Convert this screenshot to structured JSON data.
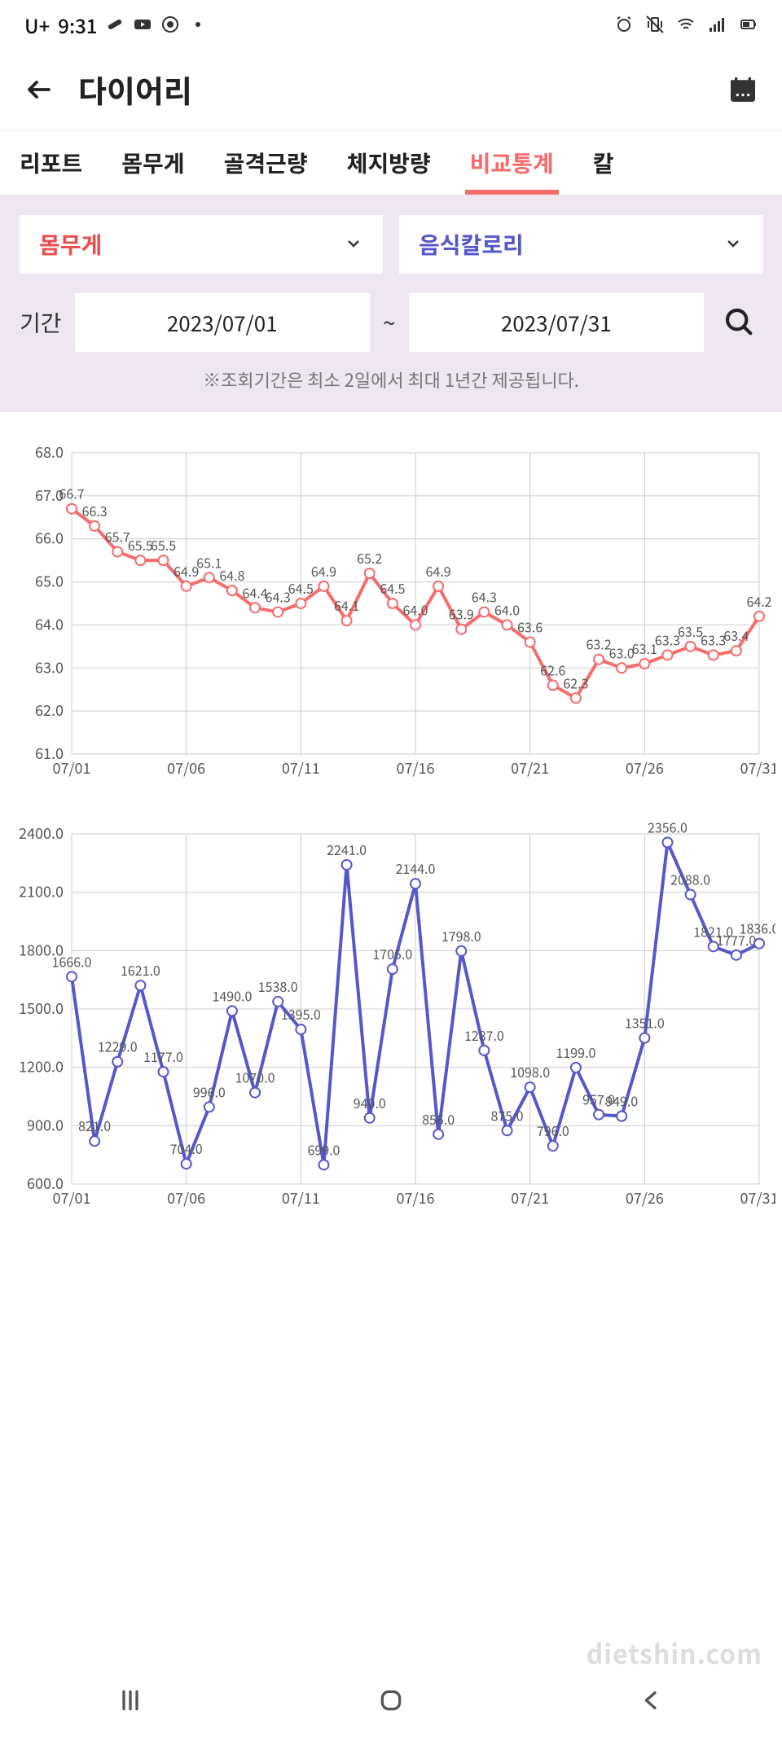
{
  "status": {
    "carrier": "U+",
    "time": "9:31",
    "icons_left": [
      "pill-icon",
      "youtube-icon",
      "chrome-icon",
      "dot-icon"
    ],
    "icons_right": [
      "alarm-icon",
      "vibrate-icon",
      "wifi-icon",
      "signal-icon",
      "battery-icon"
    ]
  },
  "header": {
    "title": "다이어리"
  },
  "tabs": {
    "items": [
      "리포트",
      "몸무게",
      "골격근량",
      "체지방량",
      "비교통계",
      "칼"
    ],
    "active_index": 4,
    "active_color": "#f76b6b"
  },
  "controls": {
    "dropdown_left": "몸무게",
    "dropdown_left_color": "#e94f4f",
    "dropdown_right": "음식칼로리",
    "dropdown_right_color": "#5658c9",
    "period_label": "기간",
    "date_from": "2023/07/01",
    "date_to": "2023/07/31",
    "note": "※조회기간은 최소 2일에서 최대 1년간 제공됩니다."
  },
  "weight_chart": {
    "type": "line",
    "line_color": "#f76b6b",
    "marker_fill": "#ffffff",
    "marker_stroke": "#f76b6b",
    "grid_color": "#cccccc",
    "text_color": "#555555",
    "label_fontsize": 18,
    "ylim": [
      61.0,
      68.0
    ],
    "ytick_step": 1.0,
    "x_labels": [
      "07/01",
      "07/06",
      "07/11",
      "07/16",
      "07/21",
      "07/26",
      "07/31"
    ],
    "x_tick_indices": [
      0,
      5,
      10,
      15,
      20,
      25,
      30
    ],
    "values": [
      66.7,
      66.3,
      65.7,
      65.5,
      65.5,
      64.9,
      65.1,
      64.8,
      64.4,
      64.3,
      64.5,
      64.9,
      64.1,
      65.2,
      64.5,
      64.0,
      64.9,
      63.9,
      64.3,
      64.0,
      63.6,
      62.6,
      62.3,
      63.2,
      63.0,
      63.1,
      63.3,
      63.5,
      63.3,
      63.4,
      64.2
    ],
    "line_width": 4,
    "marker_radius": 6
  },
  "cal_chart": {
    "type": "line",
    "line_color": "#5658c9",
    "marker_fill": "#ffffff",
    "marker_stroke": "#5658c9",
    "grid_color": "#cccccc",
    "text_color": "#555555",
    "label_fontsize": 18,
    "ylim": [
      600.0,
      2400.0
    ],
    "ytick_step": 300.0,
    "x_labels": [
      "07/01",
      "07/06",
      "07/11",
      "07/16",
      "07/21",
      "07/26",
      "07/31"
    ],
    "x_tick_indices": [
      0,
      5,
      10,
      15,
      20,
      25,
      30
    ],
    "values": [
      1666,
      821,
      1229,
      1621,
      1177,
      704,
      996,
      1490,
      1070,
      1538,
      1395,
      699,
      2241,
      940,
      1705,
      2144,
      856,
      1798,
      1287,
      875,
      1098,
      796,
      1199,
      957,
      949,
      1351,
      2356,
      2088,
      1821,
      1777,
      1836
    ],
    "line_width": 4,
    "marker_radius": 6
  },
  "watermark": "dietshin.com"
}
